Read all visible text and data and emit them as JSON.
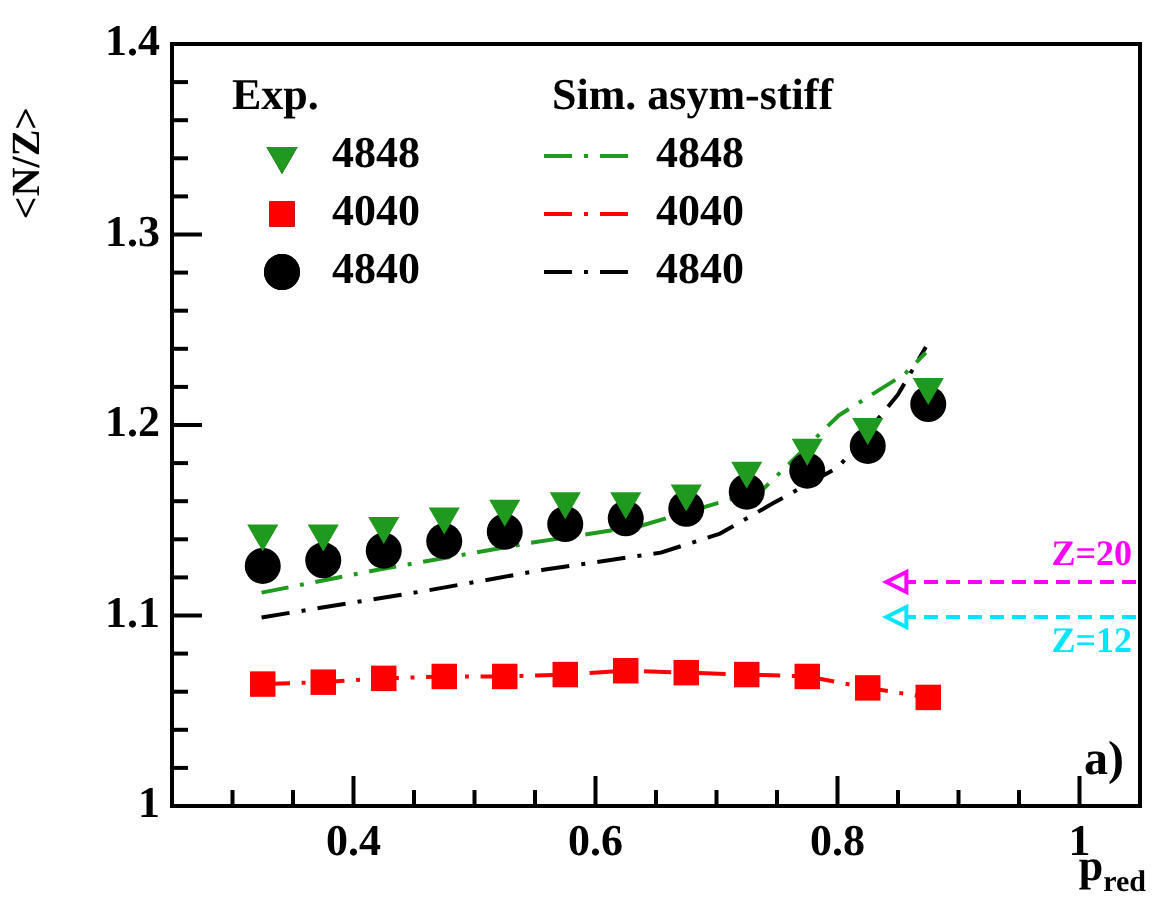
{
  "chart_data": {
    "type": "scatter",
    "xlabel": "p$_{red}$",
    "ylabel": "<N/Z>",
    "legend": "top left",
    "grid": false,
    "xlim": [
      0.25,
      1.05
    ],
    "xticks": [
      {
        "value": 0.3,
        "label": null
      },
      {
        "value": 0.35,
        "label": null
      },
      0.4,
      {
        "value": 0.45,
        "label": null
      },
      {
        "value": 0.5,
        "label": null
      },
      {
        "value": 0.55,
        "label": null
      },
      0.6,
      {
        "value": 0.65,
        "label": null
      },
      {
        "value": 0.7,
        "label": null
      },
      {
        "value": 0.75,
        "label": null
      },
      0.8,
      {
        "value": 0.85,
        "label": null
      },
      {
        "value": 0.9,
        "label": null
      },
      {
        "value": 0.95,
        "label": null
      },
      1
    ],
    "ylim": [
      1,
      1.4
    ],
    "yticks": [
      1,
      {
        "value": 1.02,
        "label": null
      },
      {
        "value": 1.04,
        "label": null
      },
      {
        "value": 1.06,
        "label": null
      },
      {
        "value": 1.08,
        "label": null
      },
      1.1,
      {
        "value": 1.12,
        "label": null
      },
      {
        "value": 1.14,
        "label": null
      },
      {
        "value": 1.16,
        "label": null
      },
      {
        "value": 1.18,
        "label": null
      },
      1.2,
      {
        "value": 1.22,
        "label": null
      },
      {
        "value": 1.24,
        "label": null
      },
      {
        "value": 1.26,
        "label": null
      },
      {
        "value": 1.28,
        "label": null
      },
      1.3,
      {
        "value": 1.32,
        "label": null
      },
      {
        "value": 1.34,
        "label": null
      },
      {
        "value": 1.36,
        "label": null
      },
      {
        "value": 1.38,
        "label": null
      },
      1.4
    ],
    "x": [
      0.325,
      0.375,
      0.425,
      0.475,
      0.525,
      0.575,
      0.625,
      0.675,
      0.725,
      0.775,
      0.825,
      0.875
    ],
    "series": [
      {
        "name": "4848",
        "marker": "triangle",
        "color": "#1f9a1f",
        "values": [
          1.143,
          1.143,
          1.147,
          1.152,
          1.156,
          1.16,
          1.16,
          1.164,
          1.176,
          1.188,
          1.199,
          1.22
        ]
      },
      {
        "name": "4040",
        "marker": "square",
        "color": "#ff0000",
        "values": [
          1.064,
          1.065,
          1.067,
          1.068,
          1.068,
          1.069,
          1.071,
          1.07,
          1.069,
          1.068,
          1.062,
          1.057
        ]
      },
      {
        "name": "4840",
        "marker": "circle",
        "color": "#000000",
        "values": [
          1.126,
          1.129,
          1.134,
          1.139,
          1.144,
          1.148,
          1.151,
          1.156,
          1.165,
          1.176,
          1.189,
          1.211
        ]
      },
      {
        "name": "4848",
        "type": "line",
        "line_style": "dashed",
        "color": "#1f9a1f",
        "x": [
          0.324,
          0.42,
          0.545,
          0.637,
          0.738,
          0.801,
          0.856,
          0.873
        ],
        "values": [
          1.112,
          1.124,
          1.138,
          1.147,
          1.166,
          1.205,
          1.227,
          1.238
        ]
      },
      {
        "name": "4040",
        "type": "line",
        "line_style": "dashed",
        "color": "#ff0000",
        "x": [
          0.325,
          0.375,
          0.425,
          0.475,
          0.525,
          0.575,
          0.625,
          0.675,
          0.725,
          0.775,
          0.825,
          0.875
        ],
        "values": [
          1.064,
          1.065,
          1.067,
          1.068,
          1.068,
          1.069,
          1.071,
          1.07,
          1.069,
          1.068,
          1.062,
          1.057
        ]
      },
      {
        "name": "4840",
        "type": "line",
        "line_style": "dashed",
        "color": "#000000",
        "x": [
          0.324,
          0.46,
          0.557,
          0.654,
          0.703,
          0.747,
          0.801,
          0.85,
          0.873
        ],
        "values": [
          1.099,
          1.113,
          1.124,
          1.133,
          1.143,
          1.159,
          1.178,
          1.216,
          1.241
        ]
      }
    ],
    "annotations": [
      "Exp.",
      "Sim. asym-stiff",
      "Z=20",
      "Z=12",
      "a)"
    ]
  }
}
